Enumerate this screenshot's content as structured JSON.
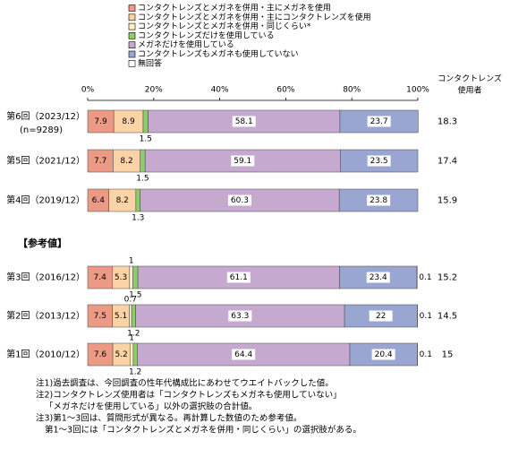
{
  "chart_data": {
    "type": "stacked_barh",
    "categories": [
      "第6回（2023/12）",
      "第5回（2021/12）",
      "第4回（2019/12）",
      "第3回（2016/12）",
      "第2回（2013/12）",
      "第1回（2010/12）"
    ],
    "category_note": "(n=9289)",
    "section_label": "【参考値】",
    "series": [
      {
        "name": "コンタクトレンズとメガネを併用・主にメガネを使用",
        "color": "#ec9a86",
        "values": [
          7.9,
          7.7,
          6.4,
          7.4,
          7.5,
          7.6
        ]
      },
      {
        "name": "コンタクトレンズとメガネを併用・主にコンタクトレンズを使用",
        "color": "#fcd3a6",
        "values": [
          8.9,
          8.2,
          8.2,
          5.3,
          5.1,
          5.2
        ]
      },
      {
        "name": "コンタクトレンズとメガネを併用・同じくらい*",
        "color": "#fff2c2",
        "values": [
          null,
          null,
          null,
          1.0,
          0.7,
          1.0
        ]
      },
      {
        "name": "コンタクトレンズだけを使用している",
        "color": "#8ecb6a",
        "values": [
          1.5,
          1.5,
          1.3,
          1.5,
          1.2,
          1.2
        ]
      },
      {
        "name": "メガネだけを使用している",
        "color": "#c6a9cf",
        "values": [
          58.1,
          59.1,
          60.3,
          61.1,
          63.3,
          64.4
        ]
      },
      {
        "name": "コンタクトレンズもメガネも使用していない",
        "color": "#9aa6d2",
        "values": [
          23.7,
          23.5,
          23.8,
          23.4,
          22.0,
          20.4
        ]
      },
      {
        "name": "無回答",
        "color": "#ffffff",
        "values": [
          null,
          null,
          null,
          0.1,
          0.1,
          0.1
        ]
      }
    ],
    "xlim": [
      0,
      100
    ],
    "xticks": [
      {
        "value": 0,
        "label": "0%"
      },
      {
        "value": 20,
        "label": "20%"
      },
      {
        "value": 40,
        "label": "40%"
      },
      {
        "value": 60,
        "label": "60%"
      },
      {
        "value": 80,
        "label": "80%"
      },
      {
        "value": 100,
        "label": "100%"
      }
    ],
    "contact_users": {
      "label": [
        "コンタクトレンズ",
        "使用者"
      ],
      "values": [
        18.3,
        17.4,
        15.9,
        15.2,
        14.5,
        15.0
      ]
    },
    "notes": [
      "注1)過去調査は、今回調査の性年代構成比にあわせてウエイトバックした値。",
      "注2)コンタクトレンズ使用者は「コンタクトレンズもメガネも使用していない」",
      "「メガネだけを使用している」以外の選択肢の合計値。",
      "注3)第1～3回は、質問形式が異なる。再計算した数値のため参考値。",
      "第1～3回には「コンタクトレンズとメガネを併用・同じくらい」の選択肢がある。"
    ]
  }
}
